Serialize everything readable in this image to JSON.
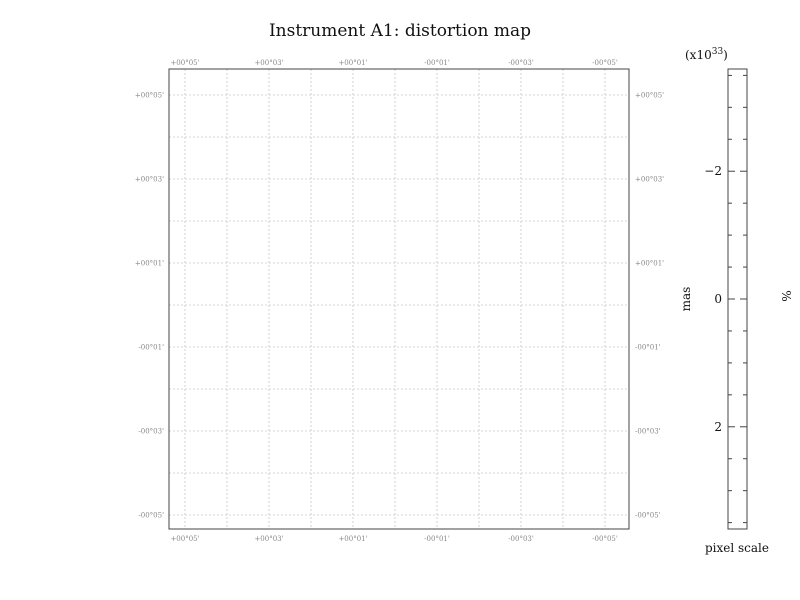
{
  "chart_data": {
    "type": "heatmap",
    "title": "Instrument A1: distortion map",
    "x_ticks_top": [
      "+00°05'",
      "+00°03'",
      "+00°01'",
      "-00°01'",
      "-00°03'",
      "-00°05'"
    ],
    "x_ticks_bottom": [
      "+00°05'",
      "+00°03'",
      "+00°01'",
      "-00°01'",
      "-00°03'",
      "-00°05'"
    ],
    "y_ticks_left": [
      "+00°05'",
      "+00°03'",
      "+00°01'",
      "-00°01'",
      "-00°03'",
      "-00°05'"
    ],
    "y_ticks_right": [
      "+00°05'",
      "+00°03'",
      "+00°01'",
      "-00°01'",
      "-00°03'",
      "-00°05'"
    ],
    "grid": true,
    "colorbar": {
      "multiplier": "(x10",
      "exponent": "33",
      "multiplier_close": ")",
      "label": "mas",
      "label_right": "%",
      "bottom_label": "pixel scale",
      "ticks": [
        {
          "value": -2,
          "label": "−2"
        },
        {
          "value": 0,
          "label": "0"
        },
        {
          "value": 2,
          "label": "2"
        }
      ],
      "range": [
        -3.6,
        3.6
      ],
      "minor_step": 0.5
    }
  }
}
